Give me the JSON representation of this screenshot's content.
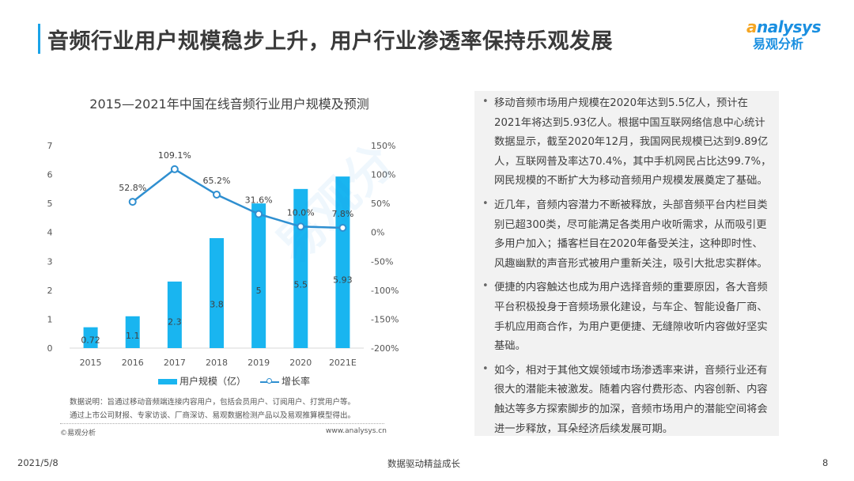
{
  "header": {
    "title": "音频行业用户规模稳步上升，用户行业渗透率保持乐观发展",
    "logo_en": "analysys",
    "logo_cn": "易观分析"
  },
  "chart_data": {
    "type": "bar+line",
    "title": "2015—2021年中国在线音频行业用户规模及预测",
    "categories": [
      "2015",
      "2016",
      "2017",
      "2018",
      "2019",
      "2020",
      "2021E"
    ],
    "series": [
      {
        "name": "用户规模（亿）",
        "type": "bar",
        "axis": "left",
        "values": [
          0.72,
          1.1,
          2.3,
          3.8,
          5,
          5.5,
          5.93
        ],
        "labels": [
          "0.72",
          "1.1",
          "2.3",
          "3.8",
          "5",
          "5.5",
          "5.93"
        ],
        "color": "#19b5f0"
      },
      {
        "name": "增长率",
        "type": "line",
        "axis": "right",
        "values": [
          null,
          52.8,
          109.1,
          65.2,
          31.6,
          10.0,
          7.8
        ],
        "labels": [
          "",
          "52.8%",
          "109.1%",
          "65.2%",
          "31.6%",
          "10.0%",
          "7.8%"
        ],
        "color": "#2f8fd0"
      }
    ],
    "left_axis": {
      "ticks": [
        "0",
        "1",
        "2",
        "3",
        "4",
        "5",
        "6",
        "7"
      ],
      "ylim": [
        0,
        7
      ]
    },
    "right_axis": {
      "ticks": [
        "-200%",
        "-150%",
        "-100%",
        "-50%",
        "0%",
        "50%",
        "100%",
        "150%"
      ],
      "ylim": [
        -200,
        150
      ]
    },
    "legend": "bottom",
    "grid": false
  },
  "chart_notes": {
    "line1": "数据说明：旨通过移动音频端连接内容用户，包括会员用户、订阅用户、打赏用户等。",
    "line2": "通过上市公司财报、专家访谈、厂商深访、易观数据检测产品以及易观推算模型得出。",
    "source_left": "©易观分析",
    "source_right": "www.analysys.cn"
  },
  "panel": {
    "paragraphs": [
      {
        "lines": [
          "移动音频市场用户规模在2020年达到5.5亿人，预计在",
          "2021年将达到5.93亿人。根据中国互联网络信息中心统计",
          "数据显示，截至2020年12月，我国网民规模已达到9.89亿",
          "人，互联网普及率达70.4%，其中手机网民占比达99.7%，",
          "网民规模的不断扩大为移动音频用户规模发展奠定了基础。"
        ]
      },
      {
        "lines": [
          "近几年，音频内容潜力不断被释放，头部音频平台内栏目类",
          "别已超300类，尽可能满足各类用户收听需求，从而吸引更",
          "多用户加入；播客栏目在2020年备受关注，这种即时性、",
          "风趣幽默的声音形式被用户重新关注，吸引大批忠实群体。"
        ]
      },
      {
        "lines": [
          "便捷的内容触达也成为用户选择音频的重要原因，各大音频",
          "平台积极投身于音频场景化建设，与车企、智能设备厂商、",
          "手机应用商合作，为用户更便捷、无缝隙收听内容做好坚实",
          "基础。"
        ]
      },
      {
        "lines": [
          "如今，相对于其他文娱领域市场渗透率来讲，音频行业还有",
          "很大的潜能未被激发。随着内容付费形态、内容创新、内容",
          "触达等多方探索脚步的加深，音频市场用户的潜能空间将会",
          "进一步释放，耳朵经济后续发展可期。"
        ]
      }
    ]
  },
  "footer": {
    "date": "2021/5/8",
    "slogan": "数据驱动精益成长",
    "page": "8"
  }
}
